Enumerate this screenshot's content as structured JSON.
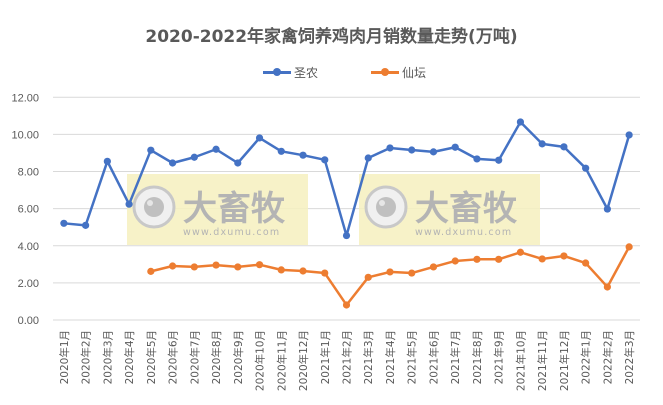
{
  "chart_data": {
    "type": "line",
    "title": "2020-2022年家禽饲养鸡肉月销数量走势(万吨)",
    "xlabel": "",
    "ylabel": "",
    "ylim": [
      0,
      12
    ],
    "yticks": [
      "0.00",
      "2.00",
      "4.00",
      "6.00",
      "8.00",
      "10.00",
      "12.00"
    ],
    "grid": true,
    "legend_position": "top",
    "categories": [
      "2020年1月",
      "2020年2月",
      "2020年3月",
      "2020年4月",
      "2020年5月",
      "2020年6月",
      "2020年7月",
      "2020年8月",
      "2020年9月",
      "2020年10月",
      "2020年11月",
      "2020年12月",
      "2021年1月",
      "2021年2月",
      "2021年3月",
      "2021年4月",
      "2021年5月",
      "2021年6月",
      "2021年7月",
      "2021年8月",
      "2021年9月",
      "2021年10月",
      "2021年11月",
      "2021年12月",
      "2022年1月",
      "2022年2月",
      "2022年3月"
    ],
    "series": [
      {
        "name": "圣农",
        "color": "#4472C4",
        "values": [
          5.21,
          5.1,
          8.55,
          6.24,
          9.15,
          8.46,
          8.77,
          9.2,
          8.46,
          9.81,
          9.09,
          8.88,
          8.63,
          4.55,
          8.73,
          9.27,
          9.16,
          9.06,
          9.31,
          8.68,
          8.61,
          10.67,
          9.49,
          9.33,
          8.18,
          5.98,
          9.97
        ]
      },
      {
        "name": "仙坛",
        "color": "#ED7D31",
        "values": [
          null,
          null,
          null,
          null,
          2.62,
          2.91,
          2.86,
          2.96,
          2.86,
          2.98,
          2.7,
          2.64,
          2.53,
          0.81,
          2.3,
          2.59,
          2.53,
          2.86,
          3.18,
          3.27,
          3.27,
          3.65,
          3.29,
          3.45,
          3.07,
          1.78,
          3.94
        ]
      }
    ]
  },
  "watermark": {
    "brand": "大畜牧",
    "url": "www.dxumu.com",
    "count": 2
  }
}
